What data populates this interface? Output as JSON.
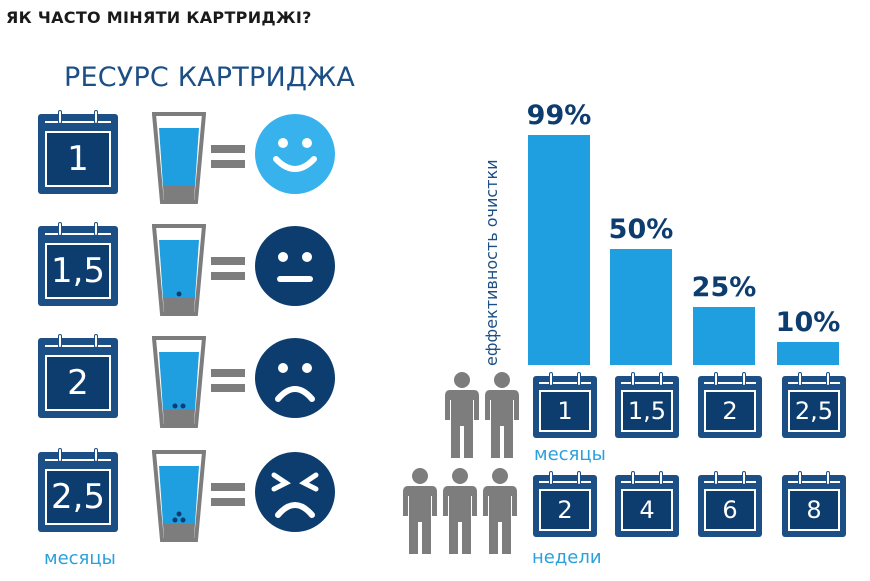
{
  "heading": "ЯК ЧАСТО МІНЯТИ КАРТРИДЖІ?",
  "resource_title": "РЕСУРС КАРТРИДЖА",
  "left_rows": [
    {
      "months": "1",
      "mood": "happy",
      "particles": 0
    },
    {
      "months": "1,5",
      "mood": "neutral",
      "particles": 1
    },
    {
      "months": "2",
      "mood": "sad",
      "particles": 2
    },
    {
      "months": "2,5",
      "mood": "upset",
      "particles": 3
    }
  ],
  "left_unit": "месяцы",
  "colors": {
    "navy": "#0d3d6e",
    "blue": "#1c4f86",
    "light_blue": "#2aa0dd",
    "bar": "#1f9ee0",
    "happy": "#38b2ec",
    "gray": "#7d7d7d"
  },
  "chart_data": {
    "type": "bar",
    "ylabel": "еффективность очистки",
    "categories_months": [
      "1",
      "1,5",
      "2",
      "2,5"
    ],
    "categories_weeks": [
      "2",
      "4",
      "6",
      "8"
    ],
    "values": [
      99,
      50,
      25,
      10
    ],
    "value_labels": [
      "99%",
      "50%",
      "25%",
      "10%"
    ],
    "ylim": [
      0,
      100
    ],
    "unit_months": "месяцы",
    "unit_weeks": "недели",
    "people_months": 2,
    "people_weeks": 3
  }
}
